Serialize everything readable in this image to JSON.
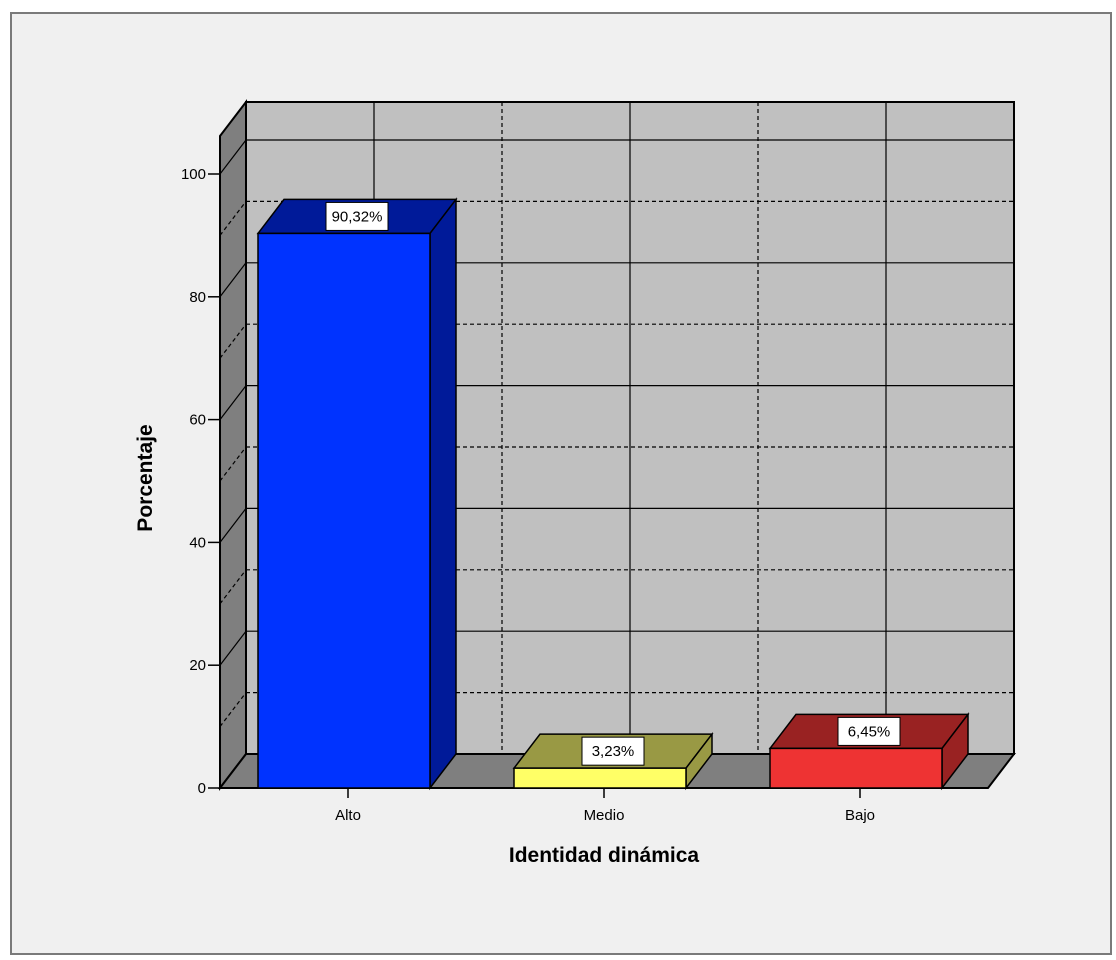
{
  "chart_data": {
    "type": "bar",
    "style": "3d",
    "title": "",
    "xlabel": "Identidad dinámica",
    "ylabel": "Porcentaje",
    "ylim": [
      0,
      100
    ],
    "yticks": [
      0,
      20,
      40,
      60,
      80,
      100
    ],
    "categories": [
      "Alto",
      "Medio",
      "Bajo"
    ],
    "values": [
      90.32,
      3.23,
      6.45
    ],
    "data_labels": [
      "90,32%",
      "3,23%",
      "6,45%"
    ],
    "colors": [
      "#0033ff",
      "#ffff66",
      "#ee3333"
    ],
    "side_colors": [
      "#001a99",
      "#999944",
      "#992222"
    ],
    "grid": true,
    "legend": "none"
  }
}
